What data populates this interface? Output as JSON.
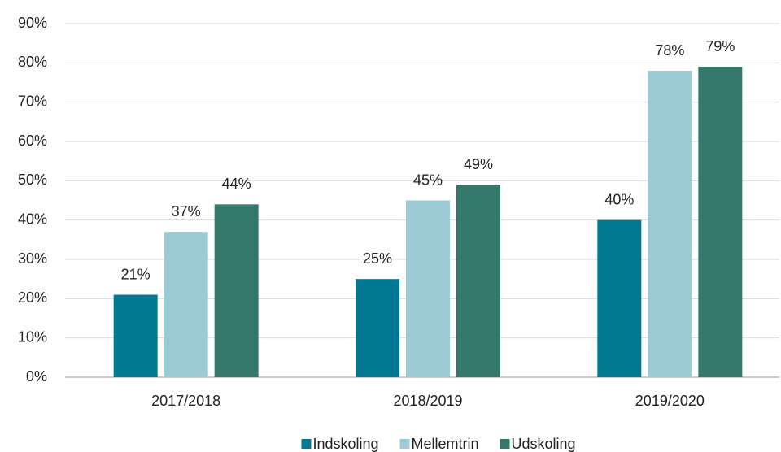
{
  "chart_data": {
    "type": "bar",
    "categories": [
      "2017/2018",
      "2018/2019",
      "2019/2020"
    ],
    "series": [
      {
        "name": "Indskoling",
        "color": "#007a94",
        "values": [
          21,
          25,
          40
        ],
        "value_labels": [
          "21%",
          "25%",
          "40%"
        ]
      },
      {
        "name": "Mellemtrin",
        "color": "#9ccbd6",
        "values": [
          37,
          45,
          78
        ],
        "value_labels": [
          "37%",
          "45%",
          "78%"
        ]
      },
      {
        "name": "Udskoling",
        "color": "#33786b",
        "values": [
          44,
          49,
          79
        ],
        "value_labels": [
          "44%",
          "49%",
          "79%"
        ]
      }
    ],
    "ylim": [
      0,
      90
    ],
    "yticks": [
      {
        "value": 0,
        "label": "0%"
      },
      {
        "value": 10,
        "label": "10%"
      },
      {
        "value": 20,
        "label": "20%"
      },
      {
        "value": 30,
        "label": "30%"
      },
      {
        "value": 40,
        "label": "40%"
      },
      {
        "value": 50,
        "label": "50%"
      },
      {
        "value": 60,
        "label": "60%"
      },
      {
        "value": 70,
        "label": "70%"
      },
      {
        "value": 80,
        "label": "80%"
      },
      {
        "value": 90,
        "label": "90%"
      }
    ],
    "grid": true,
    "legend": "bottom"
  }
}
